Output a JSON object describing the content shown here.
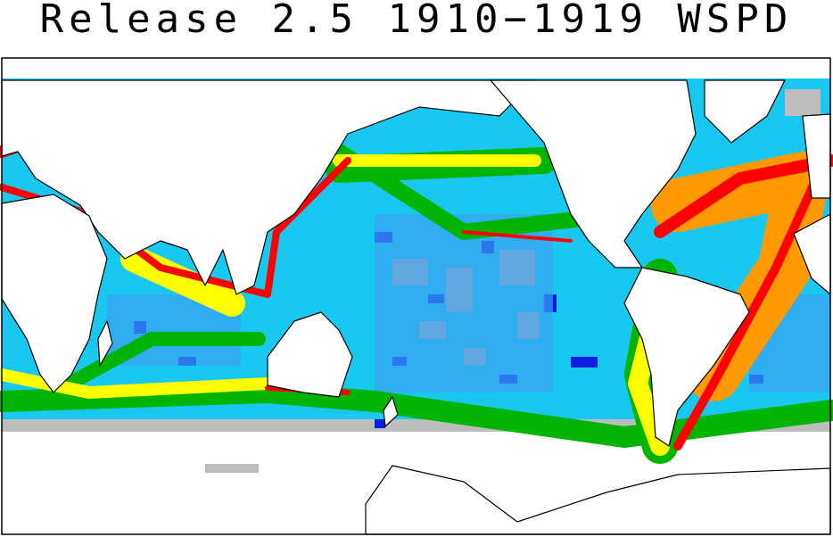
{
  "title": "Release 2.5 1910−1919 WSPD"
}
